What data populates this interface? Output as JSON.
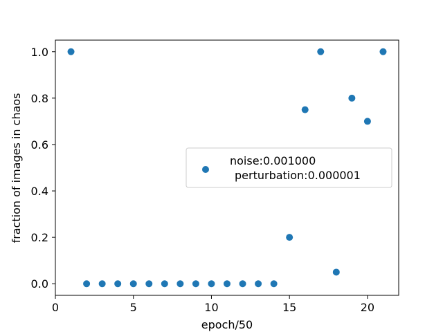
{
  "chart_data": {
    "type": "scatter",
    "xlabel": "epoch/50",
    "ylabel": "fraction of images in chaos",
    "xlim": [
      0,
      22
    ],
    "ylim": [
      -0.05,
      1.05
    ],
    "x_ticks": [
      "0",
      "5",
      "10",
      "15",
      "20"
    ],
    "x_tick_values": [
      0,
      5,
      10,
      15,
      20
    ],
    "y_ticks": [
      "0.0",
      "0.2",
      "0.4",
      "0.6",
      "0.8",
      "1.0"
    ],
    "y_tick_values": [
      0.0,
      0.2,
      0.4,
      0.6,
      0.8,
      1.0
    ],
    "grid": false,
    "legend_position": "center-right",
    "series": [
      {
        "name": "noise:0.001000\n perturbation:0.000001",
        "legend_lines": [
          "noise:0.001000",
          "perturbation:0.000001"
        ],
        "color": "#1f77b4",
        "points": [
          [
            1,
            1.0
          ],
          [
            2,
            0.0
          ],
          [
            3,
            0.0
          ],
          [
            4,
            0.0
          ],
          [
            5,
            0.0
          ],
          [
            6,
            0.0
          ],
          [
            7,
            0.0
          ],
          [
            8,
            0.0
          ],
          [
            9,
            0.0
          ],
          [
            10,
            0.0
          ],
          [
            11,
            0.0
          ],
          [
            12,
            0.0
          ],
          [
            13,
            0.0
          ],
          [
            14,
            0.0
          ],
          [
            15,
            0.2
          ],
          [
            16,
            0.75
          ],
          [
            17,
            1.0
          ],
          [
            18,
            0.05
          ],
          [
            19,
            0.8
          ],
          [
            20,
            0.7
          ],
          [
            21,
            1.0
          ]
        ]
      }
    ]
  }
}
